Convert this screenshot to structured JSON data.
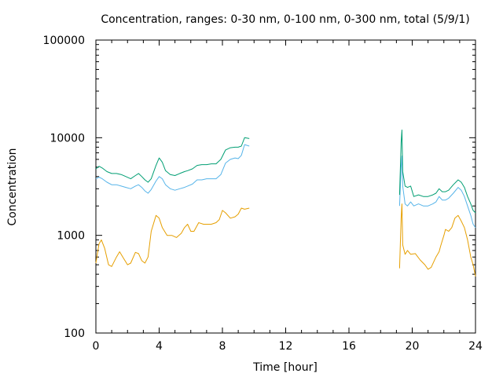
{
  "chart_data": {
    "type": "line",
    "title": "Concentration, ranges: 0-30 nm, 0-100 nm, 0-300 nm, total (5/9/1)",
    "xlabel": "Time [hour]",
    "ylabel": "Concentration",
    "xlim": [
      0,
      24
    ],
    "ylim": [
      100,
      100000
    ],
    "y_scale": "log",
    "xticks": [
      0,
      4,
      8,
      12,
      16,
      20,
      24
    ],
    "xtick_labels": [
      "0",
      "4",
      "8",
      "12",
      "16",
      "20",
      "24"
    ],
    "yticks": [
      100,
      1000,
      10000,
      100000
    ],
    "ytick_labels": [
      "100",
      "1000",
      "10000",
      "100000"
    ],
    "grid": false,
    "legend": "none",
    "series": [
      {
        "color": "#e69f00",
        "segments": [
          [
            [
              0,
              520
            ],
            [
              0.2,
              820
            ],
            [
              0.35,
              900
            ],
            [
              0.55,
              740
            ],
            [
              0.8,
              500
            ],
            [
              1.0,
              480
            ],
            [
              1.3,
              600
            ],
            [
              1.5,
              680
            ],
            [
              1.7,
              600
            ],
            [
              2.0,
              500
            ],
            [
              2.2,
              520
            ],
            [
              2.5,
              670
            ],
            [
              2.7,
              650
            ],
            [
              2.9,
              550
            ],
            [
              3.1,
              520
            ],
            [
              3.3,
              600
            ],
            [
              3.5,
              1100
            ],
            [
              3.8,
              1600
            ],
            [
              4.0,
              1500
            ],
            [
              4.2,
              1200
            ],
            [
              4.5,
              1000
            ],
            [
              4.8,
              1000
            ],
            [
              5.1,
              950
            ],
            [
              5.4,
              1050
            ],
            [
              5.6,
              1200
            ],
            [
              5.8,
              1300
            ],
            [
              6.0,
              1100
            ],
            [
              6.2,
              1100
            ],
            [
              6.5,
              1350
            ],
            [
              6.8,
              1300
            ],
            [
              7.0,
              1300
            ],
            [
              7.3,
              1300
            ],
            [
              7.6,
              1350
            ],
            [
              7.8,
              1450
            ],
            [
              8.0,
              1800
            ],
            [
              8.2,
              1700
            ],
            [
              8.5,
              1500
            ],
            [
              8.8,
              1550
            ],
            [
              9.0,
              1650
            ],
            [
              9.2,
              1900
            ],
            [
              9.4,
              1850
            ],
            [
              9.7,
              1900
            ]
          ],
          [
            [
              19.2,
              460
            ],
            [
              19.3,
              1500
            ],
            [
              19.35,
              2100
            ],
            [
              19.4,
              800
            ],
            [
              19.55,
              640
            ],
            [
              19.7,
              700
            ],
            [
              19.9,
              640
            ],
            [
              20.2,
              650
            ],
            [
              20.5,
              560
            ],
            [
              20.8,
              500
            ],
            [
              21.0,
              450
            ],
            [
              21.2,
              470
            ],
            [
              21.5,
              600
            ],
            [
              21.7,
              680
            ],
            [
              21.8,
              780
            ],
            [
              22.0,
              1000
            ],
            [
              22.1,
              1150
            ],
            [
              22.3,
              1100
            ],
            [
              22.5,
              1200
            ],
            [
              22.7,
              1500
            ],
            [
              22.9,
              1600
            ],
            [
              23.1,
              1400
            ],
            [
              23.3,
              1200
            ],
            [
              23.5,
              900
            ],
            [
              23.7,
              600
            ],
            [
              23.85,
              500
            ],
            [
              24,
              380
            ]
          ]
        ]
      },
      {
        "color": "#56b4e9",
        "segments": [
          [
            [
              0,
              3800
            ],
            [
              0.2,
              3950
            ],
            [
              0.4,
              3800
            ],
            [
              0.7,
              3500
            ],
            [
              1.0,
              3300
            ],
            [
              1.3,
              3300
            ],
            [
              1.6,
              3200
            ],
            [
              1.9,
              3100
            ],
            [
              2.2,
              3000
            ],
            [
              2.5,
              3200
            ],
            [
              2.7,
              3300
            ],
            [
              2.9,
              3100
            ],
            [
              3.1,
              2850
            ],
            [
              3.3,
              2700
            ],
            [
              3.5,
              2950
            ],
            [
              3.8,
              3600
            ],
            [
              4.0,
              4000
            ],
            [
              4.2,
              3800
            ],
            [
              4.4,
              3300
            ],
            [
              4.7,
              3000
            ],
            [
              5.0,
              2900
            ],
            [
              5.3,
              3000
            ],
            [
              5.6,
              3100
            ],
            [
              5.8,
              3200
            ],
            [
              6.1,
              3350
            ],
            [
              6.4,
              3700
            ],
            [
              6.7,
              3700
            ],
            [
              7.0,
              3800
            ],
            [
              7.3,
              3800
            ],
            [
              7.6,
              3800
            ],
            [
              7.9,
              4200
            ],
            [
              8.2,
              5500
            ],
            [
              8.5,
              6000
            ],
            [
              8.8,
              6200
            ],
            [
              9.0,
              6100
            ],
            [
              9.2,
              6600
            ],
            [
              9.4,
              8500
            ],
            [
              9.7,
              8200
            ]
          ],
          [
            [
              19.2,
              2000
            ],
            [
              19.3,
              5000
            ],
            [
              19.35,
              6500
            ],
            [
              19.4,
              3200
            ],
            [
              19.55,
              2100
            ],
            [
              19.7,
              2000
            ],
            [
              19.9,
              2200
            ],
            [
              20.1,
              2000
            ],
            [
              20.4,
              2100
            ],
            [
              20.7,
              2000
            ],
            [
              21.0,
              2000
            ],
            [
              21.3,
              2100
            ],
            [
              21.5,
              2200
            ],
            [
              21.7,
              2500
            ],
            [
              21.9,
              2300
            ],
            [
              22.1,
              2300
            ],
            [
              22.3,
              2400
            ],
            [
              22.6,
              2700
            ],
            [
              22.9,
              3100
            ],
            [
              23.1,
              2900
            ],
            [
              23.3,
              2500
            ],
            [
              23.5,
              2000
            ],
            [
              23.7,
              1600
            ],
            [
              23.85,
              1300
            ],
            [
              24,
              1200
            ]
          ]
        ]
      },
      {
        "color": "#009e73",
        "segments": [
          [
            [
              0,
              4800
            ],
            [
              0.2,
              5100
            ],
            [
              0.4,
              4900
            ],
            [
              0.7,
              4500
            ],
            [
              1.0,
              4300
            ],
            [
              1.3,
              4300
            ],
            [
              1.6,
              4200
            ],
            [
              1.9,
              4000
            ],
            [
              2.2,
              3800
            ],
            [
              2.5,
              4100
            ],
            [
              2.7,
              4300
            ],
            [
              2.9,
              4000
            ],
            [
              3.1,
              3700
            ],
            [
              3.3,
              3500
            ],
            [
              3.5,
              3800
            ],
            [
              3.8,
              5200
            ],
            [
              4.0,
              6200
            ],
            [
              4.2,
              5600
            ],
            [
              4.4,
              4600
            ],
            [
              4.7,
              4200
            ],
            [
              5.0,
              4100
            ],
            [
              5.3,
              4300
            ],
            [
              5.6,
              4500
            ],
            [
              5.8,
              4600
            ],
            [
              6.1,
              4800
            ],
            [
              6.4,
              5200
            ],
            [
              6.7,
              5300
            ],
            [
              7.0,
              5300
            ],
            [
              7.3,
              5400
            ],
            [
              7.6,
              5400
            ],
            [
              7.9,
              6000
            ],
            [
              8.2,
              7500
            ],
            [
              8.5,
              7900
            ],
            [
              8.8,
              8000
            ],
            [
              9.0,
              8000
            ],
            [
              9.2,
              8200
            ],
            [
              9.4,
              10000
            ],
            [
              9.7,
              9800
            ]
          ],
          [
            [
              19.2,
              2600
            ],
            [
              19.3,
              9000
            ],
            [
              19.35,
              12000
            ],
            [
              19.4,
              4500
            ],
            [
              19.55,
              3200
            ],
            [
              19.7,
              3100
            ],
            [
              19.9,
              3200
            ],
            [
              20.1,
              2500
            ],
            [
              20.4,
              2600
            ],
            [
              20.7,
              2500
            ],
            [
              21.0,
              2500
            ],
            [
              21.3,
              2600
            ],
            [
              21.5,
              2700
            ],
            [
              21.7,
              3000
            ],
            [
              21.9,
              2800
            ],
            [
              22.1,
              2800
            ],
            [
              22.3,
              2900
            ],
            [
              22.6,
              3300
            ],
            [
              22.9,
              3700
            ],
            [
              23.1,
              3500
            ],
            [
              23.3,
              3100
            ],
            [
              23.5,
              2500
            ],
            [
              23.7,
              2100
            ],
            [
              23.85,
              1800
            ],
            [
              24,
              1700
            ]
          ]
        ]
      }
    ]
  }
}
